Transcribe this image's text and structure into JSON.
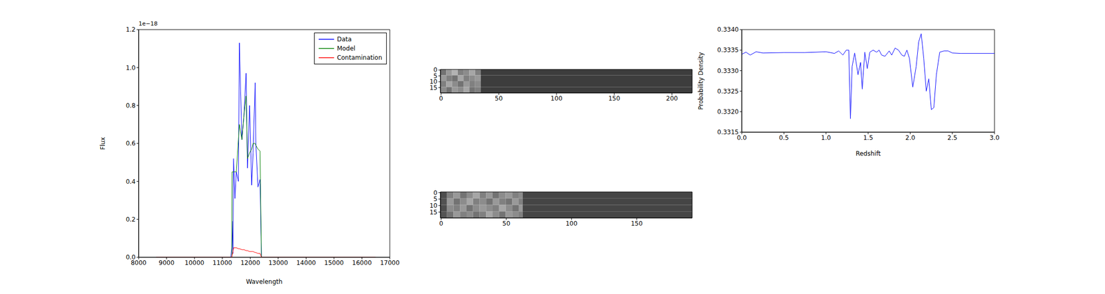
{
  "chart_data": [
    {
      "type": "line",
      "x_label": "Wavelength",
      "y_label": "Flux",
      "annotations": [
        "1e−18"
      ],
      "legend": "upper right",
      "grid": false,
      "xlim": [
        8000,
        17000
      ],
      "xticks": [
        8000,
        9000,
        10000,
        11000,
        12000,
        13000,
        14000,
        15000,
        16000,
        17000
      ],
      "ylim": [
        0,
        1.2
      ],
      "yticks": [
        {
          "value": 0,
          "label": "0.0"
        },
        0.2,
        0.4,
        0.6,
        0.8,
        {
          "value": 1,
          "label": "1.0"
        },
        1.2
      ],
      "x": [
        8630,
        11300,
        11340,
        11350,
        11380,
        11400,
        11450,
        11500,
        11575,
        11610,
        11700,
        11775,
        11850,
        11900,
        11975,
        12050,
        12100,
        12175,
        12200,
        12275,
        12350,
        12400,
        12420,
        16490
      ],
      "series": [
        {
          "name": "Data",
          "color": "#0000ff",
          "values": [
            0,
            0,
            0.05,
            0.19,
            0.02,
            0.52,
            0.31,
            0.45,
            0.4,
            1.13,
            0.62,
            0.75,
            0.97,
            0.47,
            0.8,
            0.38,
            0.55,
            0.92,
            0.6,
            0.37,
            0.41,
            0,
            0,
            0
          ]
        },
        {
          "name": "Model",
          "color": "#008000",
          "values": [
            0,
            0,
            0,
            0.45,
            0.45,
            0.45,
            0.45,
            0.45,
            0.62,
            0.7,
            0.62,
            0.75,
            0.85,
            0.52,
            0.55,
            0.57,
            0.6,
            0.6,
            0.59,
            0.57,
            0.56,
            0,
            0,
            0
          ]
        },
        {
          "name": "Contamination",
          "color": "#ff0000",
          "values": [
            0,
            0,
            0,
            0.01,
            0.03,
            0.05,
            0.05,
            0.05,
            0.045,
            0.045,
            0.04,
            0.04,
            0.035,
            0.035,
            0.03,
            0.03,
            0.03,
            0.025,
            0.025,
            0.02,
            0.02,
            0,
            0,
            0
          ]
        }
      ]
    },
    {
      "type": "heatmap",
      "color": "gray",
      "xlim": [
        -0.5,
        217.5
      ],
      "xticks": [
        0,
        50,
        100,
        150,
        200
      ],
      "ylim": [
        19.5,
        -0.5
      ],
      "yticks": [
        0,
        5,
        10,
        15
      ],
      "x_edges": [
        -0.5,
        4.5,
        9.5,
        14.5,
        19.5,
        24.5,
        29.5,
        34.5,
        217.5
      ],
      "y_edges": [
        -0.5,
        4.5,
        9.5,
        14.5,
        19.5
      ],
      "cells": [
        [
          0.45,
          0.6,
          0.7,
          0.5,
          0.55,
          0.65,
          0.5,
          0.24
        ],
        [
          0.6,
          0.5,
          0.45,
          0.65,
          0.5,
          0.55,
          0.6,
          0.24
        ],
        [
          0.5,
          0.65,
          0.55,
          0.45,
          0.6,
          0.5,
          0.55,
          0.24
        ],
        [
          0.55,
          0.45,
          0.6,
          0.55,
          0.65,
          0.45,
          0.5,
          0.24
        ]
      ]
    },
    {
      "type": "heatmap",
      "color": "gray",
      "xlim": [
        -0.5,
        192.5
      ],
      "xticks": [
        0,
        50,
        100,
        150
      ],
      "ylim": [
        19.5,
        -0.5
      ],
      "yticks": [
        0,
        5,
        10,
        15
      ],
      "x_edges": [
        -0.5,
        4.5,
        9.5,
        14.5,
        19.5,
        24.5,
        29.5,
        34.5,
        39.5,
        44.5,
        49.5,
        54.5,
        59.5,
        62.5,
        192.5
      ],
      "y_edges": [
        -0.5,
        4.5,
        9.5,
        14.5,
        19.5
      ],
      "cells": [
        [
          0.3,
          0.5,
          0.6,
          0.45,
          0.55,
          0.65,
          0.5,
          0.6,
          0.45,
          0.55,
          0.6,
          0.5,
          0.55,
          0.27
        ],
        [
          0.32,
          0.6,
          0.45,
          0.55,
          0.65,
          0.5,
          0.55,
          0.45,
          0.6,
          0.5,
          0.45,
          0.6,
          0.5,
          0.27
        ],
        [
          0.3,
          0.55,
          0.5,
          0.6,
          0.45,
          0.55,
          0.6,
          0.55,
          0.5,
          0.65,
          0.55,
          0.45,
          0.6,
          0.27
        ],
        [
          0.33,
          0.45,
          0.6,
          0.5,
          0.55,
          0.45,
          0.5,
          0.65,
          0.55,
          0.45,
          0.6,
          0.55,
          0.5,
          0.27
        ]
      ]
    },
    {
      "type": "line",
      "x_label": "Redshift",
      "y_label": "Probability Density",
      "grid": false,
      "color": "#0000ff",
      "xlim": [
        0,
        3
      ],
      "xticks": [
        {
          "value": 0,
          "label": "0.0"
        },
        0.5,
        {
          "value": 1,
          "label": "1.0"
        },
        1.5,
        {
          "value": 2,
          "label": "2.0"
        },
        2.5,
        {
          "value": 3,
          "label": "3.0"
        }
      ],
      "ylim": [
        0.3315,
        0.334
      ],
      "yticks": [
        0.3315,
        {
          "value": 0.332,
          "label": "0.3320"
        },
        0.3325,
        {
          "value": 0.333,
          "label": "0.3330"
        },
        0.3335,
        {
          "value": 0.334,
          "label": "0.3340"
        }
      ],
      "x": [
        0,
        0.05,
        0.1,
        0.17,
        0.25,
        0.5,
        0.75,
        1.0,
        1.1,
        1.15,
        1.2,
        1.24,
        1.27,
        1.29,
        1.31,
        1.34,
        1.38,
        1.41,
        1.43,
        1.46,
        1.49,
        1.52,
        1.56,
        1.6,
        1.63,
        1.66,
        1.7,
        1.75,
        1.78,
        1.82,
        1.86,
        1.9,
        1.93,
        1.96,
        1.99,
        2.03,
        2.07,
        2.1,
        2.13,
        2.16,
        2.19,
        2.22,
        2.25,
        2.28,
        2.31,
        2.35,
        2.4,
        2.45,
        2.5,
        2.6,
        3.0
      ],
      "values": [
        0.3334,
        0.33345,
        0.33338,
        0.33346,
        0.33343,
        0.33344,
        0.33344,
        0.33346,
        0.33342,
        0.33348,
        0.33338,
        0.3335,
        0.3335,
        0.33183,
        0.3331,
        0.33343,
        0.3329,
        0.3332,
        0.33255,
        0.33345,
        0.33305,
        0.33345,
        0.3335,
        0.33345,
        0.3335,
        0.33338,
        0.33335,
        0.33348,
        0.33338,
        0.33355,
        0.3335,
        0.33338,
        0.33335,
        0.3335,
        0.3333,
        0.3326,
        0.3331,
        0.3337,
        0.3339,
        0.3333,
        0.3325,
        0.3328,
        0.33205,
        0.3321,
        0.3329,
        0.33345,
        0.33348,
        0.33348,
        0.33343,
        0.33342,
        0.33342
      ]
    }
  ]
}
